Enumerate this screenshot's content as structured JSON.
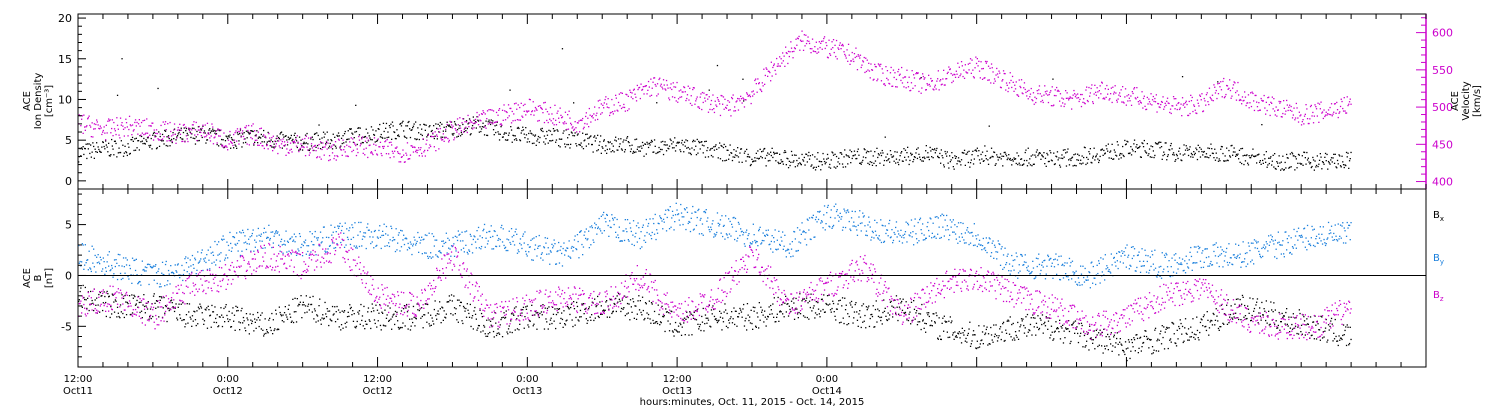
{
  "chart_data": [
    {
      "type": "scatter",
      "panel": "top",
      "left_axis": {
        "label_lines": [
          "ACE",
          "Ion Density",
          "[cm⁻³]"
        ],
        "range": [
          -1,
          20.5
        ],
        "ticks": [
          "0",
          "5",
          "10",
          "15",
          "20"
        ],
        "tick_values": [
          0,
          5,
          10,
          15,
          20
        ],
        "color": "#000000"
      },
      "right_axis": {
        "label_lines": [
          "ACE",
          "Velocity",
          "[km/s]"
        ],
        "range": [
          390,
          625
        ],
        "ticks": [
          "400",
          "450",
          "500",
          "550",
          "600"
        ],
        "tick_values": [
          400,
          450,
          500,
          550,
          600
        ],
        "color": "#cc00cc"
      },
      "series": [
        {
          "axis": "left",
          "color": "#000000",
          "x_hours": [
            0,
            2,
            4,
            6,
            8,
            10,
            12,
            14,
            16,
            18,
            20,
            22,
            24,
            26,
            28,
            30,
            32,
            34,
            36,
            38,
            40,
            42,
            44,
            46,
            48,
            50,
            52,
            54,
            56,
            58,
            60,
            62,
            64,
            66,
            68,
            70,
            72,
            74,
            76,
            78,
            80,
            82,
            84,
            86,
            88,
            90,
            92,
            94,
            96,
            98,
            100,
            102
          ],
          "values": [
            3.5,
            4,
            4.2,
            5,
            5.5,
            5.8,
            5,
            5.5,
            5,
            4.8,
            5,
            5.5,
            6,
            6.5,
            6,
            6.5,
            7,
            6,
            5.5,
            5.5,
            5,
            4.5,
            4.5,
            4,
            4.5,
            4,
            3.5,
            3,
            3,
            2.5,
            2.5,
            3,
            3,
            3,
            3.5,
            2.5,
            3,
            3,
            3,
            2.8,
            3,
            3.5,
            4,
            4,
            3.5,
            3.5,
            3.5,
            3,
            2.5,
            2.5,
            2.5,
            2.5
          ],
          "note": "scatter points; occasional density spikes up to ~20"
        },
        {
          "axis": "right",
          "color": "#cc00cc",
          "x_hours": [
            0,
            2,
            4,
            6,
            8,
            10,
            12,
            14,
            16,
            18,
            20,
            22,
            24,
            26,
            28,
            30,
            32,
            34,
            36,
            38,
            40,
            42,
            44,
            46,
            48,
            50,
            52,
            54,
            56,
            58,
            60,
            62,
            64,
            66,
            68,
            70,
            72,
            74,
            76,
            78,
            80,
            82,
            84,
            86,
            88,
            90,
            92,
            94,
            96,
            98,
            100,
            102
          ],
          "values": [
            480,
            470,
            475,
            470,
            465,
            470,
            455,
            465,
            450,
            450,
            440,
            450,
            445,
            440,
            450,
            470,
            480,
            490,
            500,
            490,
            480,
            500,
            510,
            530,
            520,
            510,
            500,
            520,
            560,
            590,
            580,
            570,
            545,
            540,
            530,
            545,
            555,
            540,
            520,
            515,
            510,
            525,
            515,
            510,
            500,
            505,
            530,
            510,
            500,
            490,
            495,
            505
          ],
          "note": "scatter points"
        }
      ]
    },
    {
      "type": "scatter",
      "panel": "bottom",
      "left_axis": {
        "label_lines": [
          "ACE",
          "B",
          "[nT]"
        ],
        "range": [
          -9,
          8.5
        ],
        "ticks": [
          "-5",
          "0",
          "5"
        ],
        "tick_values": [
          -5,
          0,
          5
        ],
        "color": "#000000"
      },
      "zero_line": true,
      "legend": [
        {
          "label": "B",
          "sub": "x",
          "color": "#000000"
        },
        {
          "label": "B",
          "sub": "y",
          "color": "#1a7fdc"
        },
        {
          "label": "B",
          "sub": "z",
          "color": "#cc00cc"
        }
      ],
      "series": [
        {
          "name": "Bx",
          "color": "#000000",
          "x_hours": [
            0,
            3,
            6,
            9,
            12,
            15,
            18,
            21,
            24,
            27,
            30,
            33,
            36,
            39,
            42,
            45,
            48,
            51,
            54,
            57,
            60,
            63,
            66,
            69,
            72,
            75,
            78,
            81,
            84,
            87,
            90,
            93,
            96,
            99,
            102
          ],
          "values": [
            -2,
            -3,
            -3,
            -4,
            -4,
            -5,
            -3,
            -4,
            -4,
            -4,
            -3,
            -5,
            -4,
            -4,
            -3,
            -3,
            -5,
            -4,
            -4,
            -3,
            -3,
            -4,
            -3,
            -5,
            -6,
            -5,
            -5,
            -6,
            -7,
            -6,
            -5,
            -3,
            -4,
            -5,
            -6
          ]
        },
        {
          "name": "By",
          "color": "#1a7fdc",
          "x_hours": [
            0,
            3,
            6,
            9,
            12,
            15,
            18,
            21,
            24,
            27,
            30,
            33,
            36,
            39,
            42,
            45,
            48,
            51,
            54,
            57,
            60,
            63,
            66,
            69,
            72,
            75,
            78,
            81,
            84,
            87,
            90,
            93,
            96,
            99,
            102
          ],
          "values": [
            2,
            1,
            0,
            1,
            3,
            4,
            3,
            4,
            4,
            3,
            3,
            4,
            3,
            2,
            5,
            4,
            6,
            5,
            4,
            3,
            6,
            5,
            4,
            5,
            4,
            1,
            1,
            0,
            2,
            1,
            2,
            2,
            3,
            4,
            4
          ]
        },
        {
          "name": "Bz",
          "color": "#cc00cc",
          "x_hours": [
            0,
            3,
            6,
            9,
            12,
            15,
            18,
            21,
            24,
            27,
            30,
            33,
            36,
            39,
            42,
            45,
            48,
            51,
            54,
            57,
            60,
            63,
            66,
            69,
            72,
            75,
            78,
            81,
            84,
            87,
            90,
            93,
            96,
            99,
            102
          ],
          "values": [
            -3,
            -2,
            -4,
            -1,
            0,
            2,
            1,
            3,
            -2,
            -3,
            2,
            -4,
            -3,
            -2,
            -3,
            0,
            -4,
            -2,
            2,
            -3,
            -1,
            1,
            -4,
            -1,
            0,
            -2,
            -3,
            -5,
            -4,
            -2,
            -1,
            -4,
            -5,
            -5,
            -3
          ]
        }
      ]
    }
  ],
  "x_axis": {
    "range_hours": [
      0,
      108
    ],
    "major_ticks_hours": [
      0,
      12,
      24,
      36,
      48,
      60,
      72,
      84
    ],
    "minor_tick_interval_hours": 2,
    "labels": [
      {
        "time": "12:00",
        "date": "Oct11"
      },
      {
        "time": "0:00",
        "date": "Oct12"
      },
      {
        "time": "12:00",
        "date": "Oct12"
      },
      {
        "time": "0:00",
        "date": "Oct13"
      },
      {
        "time": "12:00",
        "date": "Oct13"
      },
      {
        "time": "0:00",
        "date": "Oct14"
      }
    ],
    "label_hours": [
      0,
      12,
      24,
      36,
      48,
      60
    ],
    "title": "hours:minutes, Oct. 11, 2015 - Oct. 14, 2015"
  }
}
